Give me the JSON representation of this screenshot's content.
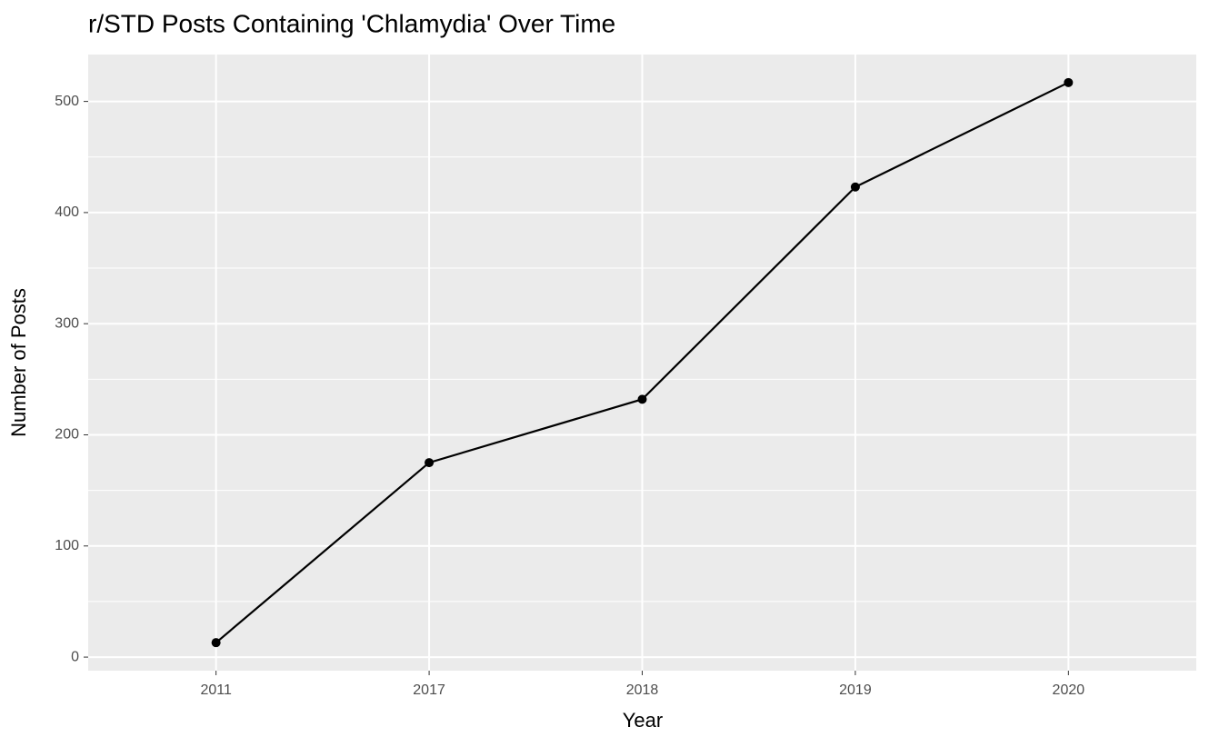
{
  "chart_data": {
    "type": "line",
    "title": "r/STD Posts Containing 'Chlamydia' Over Time",
    "x_label": "Year",
    "y_label": "Number of Posts",
    "categories": [
      "2011",
      "2017",
      "2018",
      "2019",
      "2020"
    ],
    "values": [
      13,
      175,
      232,
      423,
      517
    ],
    "color": "#000000",
    "ylim": [
      -12.2,
      542.2
    ],
    "yticks": [
      0,
      100,
      200,
      300,
      400,
      500
    ],
    "minor_yticks": [
      50,
      150,
      250,
      350,
      450
    ],
    "grid": true
  }
}
